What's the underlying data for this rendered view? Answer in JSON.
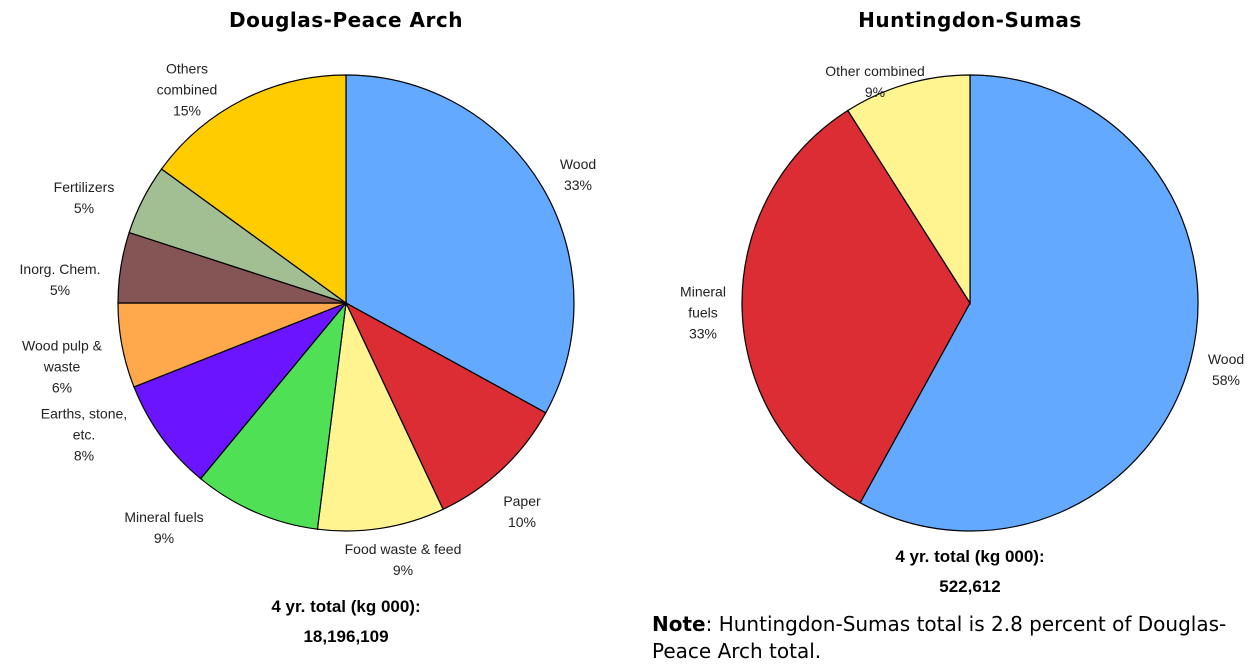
{
  "chart_data": [
    {
      "type": "pie",
      "title": "Douglas-Peace Arch",
      "categories": [
        "Wood",
        "Paper",
        "Food waste & feed",
        "Mineral fuels",
        "Earths, stone, etc.",
        "Wood pulp & waste",
        "Inorg. Chem.",
        "Fertilizers",
        "Others combined"
      ],
      "values": [
        33,
        10,
        9,
        9,
        8,
        6,
        5,
        5,
        15
      ],
      "value_labels": [
        "33%",
        "10%",
        "9%",
        "9%",
        "8%",
        "6%",
        "5%",
        "5%",
        "15%"
      ],
      "colors": [
        "#62a9ff",
        "#dc2c34",
        "#fff48f",
        "#4fe055",
        "#6a14ff",
        "#ffa94c",
        "#855556",
        "#a1bf93",
        "#ffcc00"
      ],
      "total_label": "4 yr. total (kg 000):",
      "total": "18,196,109"
    },
    {
      "type": "pie",
      "title": "Huntingdon-Sumas",
      "categories": [
        "Wood",
        "Mineral fuels",
        "Other combined"
      ],
      "values": [
        58,
        33,
        9
      ],
      "value_labels": [
        "58%",
        "33%",
        "9%"
      ],
      "colors": [
        "#62a9ff",
        "#dc2c34",
        "#fff48f"
      ],
      "total_label": "4 yr. total (kg 000):",
      "total": "522,612"
    }
  ],
  "note": {
    "label": "Note",
    "text": ": Huntingdon-Sumas total is 2.8 percent of Douglas-Peace Arch total."
  }
}
